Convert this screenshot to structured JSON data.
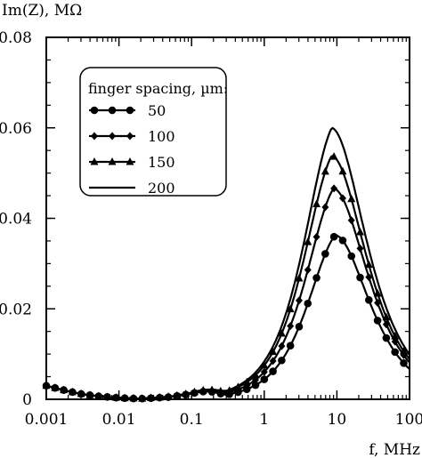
{
  "chart_data": {
    "type": "line",
    "xlabel": "f, MHz",
    "ylabel": "Im(Z), MΩ",
    "x_scale": "log",
    "xlim": [
      0.001,
      100
    ],
    "ylim": [
      0,
      0.08
    ],
    "x_ticks": [
      0.001,
      0.01,
      0.1,
      1,
      10,
      100
    ],
    "x_tick_labels": [
      "0.001",
      "0.01",
      "0.1",
      "1",
      "10",
      "100"
    ],
    "y_ticks": [
      0,
      0.02,
      0.04,
      0.06,
      0.08
    ],
    "y_tick_labels": [
      "0",
      "0.02",
      "0.04",
      "0.06",
      "0.08"
    ],
    "grid": false,
    "legend": {
      "title": "finger spacing, µm:",
      "position": "top-left"
    },
    "series": [
      {
        "name": "50",
        "marker": "circle",
        "peak_f": 9.5,
        "peak": 0.0372
      },
      {
        "name": "100",
        "marker": "diamond",
        "peak_f": 9.0,
        "peak": 0.0478
      },
      {
        "name": "150",
        "marker": "triangle",
        "peak_f": 8.5,
        "peak": 0.0552
      },
      {
        "name": "200",
        "marker": "none",
        "peak_f": 8.5,
        "peak": 0.0615
      }
    ],
    "low_freq_tail": {
      "f": [
        0.001,
        0.0015,
        0.002,
        0.003,
        0.005,
        0.01,
        0.02,
        0.05,
        0.1,
        0.2
      ],
      "im_z": [
        0.003,
        0.0023,
        0.0018,
        0.0012,
        0.0007,
        0.0003,
        0.0001,
        0.0004,
        0.001,
        0.0028
      ]
    }
  }
}
